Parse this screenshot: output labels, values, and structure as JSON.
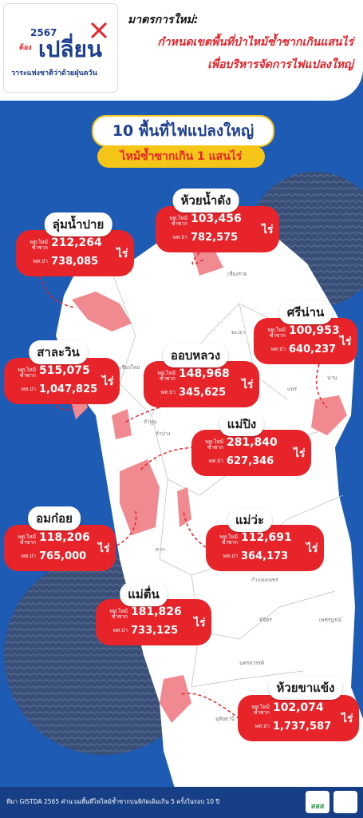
{
  "header": {
    "year": "2567",
    "must": "ต้อง",
    "change": "เปลี่ยน",
    "tagline": "วาระแห่งชาติว่าด้วยฝุ่นควัน",
    "title": [
      "มาตรการใหม่:",
      "กำหนดเขตพื้นที่ป่าไหม้ซ้ำซากเกินแสนไร่",
      "เพื่อบริหารจัดการไฟแปลงใหญ่"
    ]
  },
  "banner": {
    "title": "10 พื้นที่ไฟแปลงใหญ่",
    "subtitle": "ไหม้ซ้ำซากเกิน 1 แสนไร่"
  },
  "labels": {
    "burned": "พท.ไหม้ซ้ำซาก",
    "forest": "พท.ป่า",
    "unit": "ไร่"
  },
  "areas": [
    {
      "name": "ลุ่มน้ำปาย",
      "burned": "212,264",
      "forest": "738,085"
    },
    {
      "name": "ห้วยน้ำดัง",
      "burned": "103,456",
      "forest": "782,575"
    },
    {
      "name": "ศรีน่าน",
      "burned": "100,953",
      "forest": "640,237"
    },
    {
      "name": "สาละวิน",
      "burned": "515,075",
      "forest": "1,047,825"
    },
    {
      "name": "ออบหลวง",
      "burned": "148,968",
      "forest": "345,625"
    },
    {
      "name": "แม่ปิง",
      "burned": "281,840",
      "forest": "627,346"
    },
    {
      "name": "อมก๋อย",
      "burned": "118,206",
      "forest": "765,000"
    },
    {
      "name": "แม่ว่ะ",
      "burned": "112,691",
      "forest": "364,173"
    },
    {
      "name": "แม่ตื่น",
      "burned": "181,826",
      "forest": "733,125"
    },
    {
      "name": "ห้วยขาแข้ง",
      "burned": "102,074",
      "forest": "1,737,587"
    }
  ],
  "places": [
    "เชียงราย",
    "พะเยา",
    "น่าน",
    "แพร่",
    "เชียงใหม่",
    "ลำพูน",
    "ลำปาง",
    "อุตรดิตถ์",
    "สุโขทัย",
    "ตาก",
    "พิษณุโลก",
    "กำแพงเพชร",
    "พิจิตร",
    "เพชรบูรณ์",
    "นครสวรรค์",
    "อุทัยธานี",
    "แม่ฮ่องสอน"
  ],
  "footer": {
    "source": "ที่มา GISTDA 2565 คำนวณพื้นที่ไฟไหม้ซ้ำซากบนพิกัดเดิมเกิน 5 ครั้งในรอบ 10 ปี",
    "logo": "สสส"
  }
}
